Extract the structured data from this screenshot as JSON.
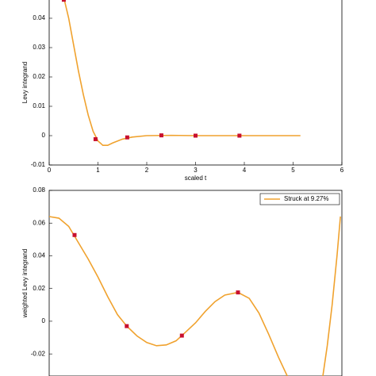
{
  "chart_data": [
    {
      "type": "line",
      "xlabel": "scaled t",
      "ylabel": "Levy integrand",
      "xlim": [
        0,
        6
      ],
      "xticks": [
        0,
        1,
        2,
        3,
        4,
        5,
        6
      ],
      "ylim": [
        -0.01,
        0.05
      ],
      "yticks": [
        -0.01,
        0,
        0.01,
        0.02,
        0.03,
        0.04
      ],
      "x": [
        0.3,
        0.4,
        0.5,
        0.6,
        0.7,
        0.8,
        0.9,
        1.0,
        1.1,
        1.2,
        1.3,
        1.5,
        1.7,
        2.0,
        2.5,
        3.0,
        4.0,
        5.15
      ],
      "series": [
        {
          "color": "#f0a22e",
          "values": [
            0.047,
            0.04,
            0.031,
            0.022,
            0.014,
            0.007,
            0.0015,
            -0.0018,
            -0.0033,
            -0.0033,
            -0.0025,
            -0.0012,
            -0.0005,
            0,
            0.0001,
            0,
            0,
            0
          ]
        }
      ],
      "markers": {
        "color": "#c8102e",
        "x": [
          0.3,
          0.95,
          1.6,
          2.3,
          3.0,
          3.9
        ],
        "values": [
          0.0463,
          -0.0012,
          -0.0006,
          0.0001,
          0,
          0
        ]
      }
    },
    {
      "type": "line",
      "ylabel": "weighted Levy integrand",
      "legend": "upper right",
      "xlim": [
        0,
        6
      ],
      "ylim": [
        -0.0335,
        0.08
      ],
      "yticks": [
        -0.02,
        0,
        0.02,
        0.04,
        0.06,
        0.08
      ],
      "x": [
        0,
        0.2,
        0.4,
        0.52,
        0.8,
        1.0,
        1.2,
        1.4,
        1.59,
        1.8,
        2.0,
        2.2,
        2.4,
        2.6,
        2.72,
        3.0,
        3.2,
        3.4,
        3.6,
        3.87,
        4.1,
        4.3,
        4.5,
        4.7,
        4.88,
        5.2,
        5.61,
        5.7,
        5.8,
        5.9,
        5.97
      ],
      "series": [
        {
          "name": "Struck at 9.27%",
          "color": "#f0a22e",
          "values": [
            0.064,
            0.063,
            0.058,
            0.052,
            0.038,
            0.027,
            0.015,
            0.004,
            -0.003,
            -0.009,
            -0.013,
            -0.015,
            -0.0145,
            -0.012,
            -0.0088,
            -0.001,
            0.006,
            0.012,
            0.016,
            0.0176,
            0.014,
            0.005,
            -0.008,
            -0.022,
            -0.0335,
            null,
            -0.0335,
            -0.015,
            0.01,
            0.04,
            0.064
          ]
        }
      ],
      "markers": {
        "color": "#c8102e",
        "x": [
          0.52,
          1.59,
          2.72,
          3.87
        ],
        "values": [
          0.0527,
          -0.003,
          -0.0088,
          0.0176
        ]
      }
    }
  ]
}
